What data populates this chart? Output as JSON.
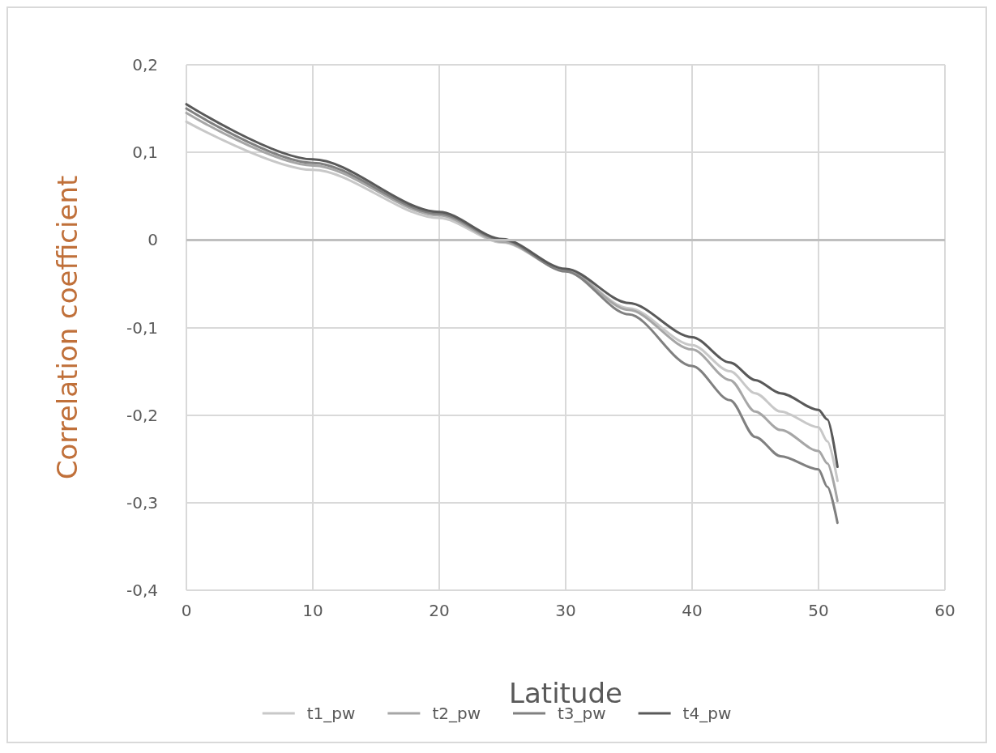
{
  "chart_data": {
    "type": "line",
    "xlabel": "Latitude",
    "ylabel": "Correlation coefficient",
    "x": [
      0,
      10,
      20,
      25,
      30,
      35,
      40,
      43,
      45,
      47,
      50,
      50.7,
      51.5
    ],
    "series": [
      {
        "name": "t1_pw",
        "color": "#c8c8c8",
        "values": [
          0.135,
          0.08,
          0.025,
          -0.003,
          -0.035,
          -0.078,
          -0.12,
          -0.15,
          -0.175,
          -0.196,
          -0.214,
          -0.23,
          -0.275
        ]
      },
      {
        "name": "t2_pw",
        "color": "#a6a6a6",
        "values": [
          0.145,
          0.085,
          0.028,
          -0.002,
          -0.035,
          -0.08,
          -0.125,
          -0.16,
          -0.196,
          -0.217,
          -0.241,
          -0.255,
          -0.298
        ]
      },
      {
        "name": "t3_pw",
        "color": "#808080",
        "values": [
          0.15,
          0.088,
          0.03,
          0,
          -0.036,
          -0.085,
          -0.144,
          -0.183,
          -0.225,
          -0.247,
          -0.262,
          -0.282,
          -0.323
        ]
      },
      {
        "name": "t4_pw",
        "color": "#595959",
        "values": [
          0.155,
          0.092,
          0.032,
          0.001,
          -0.033,
          -0.072,
          -0.111,
          -0.14,
          -0.16,
          -0.175,
          -0.194,
          -0.205,
          -0.259
        ]
      }
    ],
    "xlim": [
      0,
      60
    ],
    "xticks": [
      0,
      10,
      20,
      30,
      40,
      50,
      60
    ],
    "ylim": [
      -0.4,
      0.2
    ],
    "yticks": [
      {
        "value": -0.4,
        "label": "-0,4"
      },
      {
        "value": -0.3,
        "label": "-0,3"
      },
      {
        "value": -0.2,
        "label": "-0,2"
      },
      {
        "value": -0.1,
        "label": "-0,1"
      },
      0,
      {
        "value": 0.1,
        "label": "0,1"
      },
      {
        "value": 0.2,
        "label": "0,2"
      }
    ],
    "grid": true,
    "legend": "bottom",
    "marker": "none",
    "line_style": "solid"
  }
}
